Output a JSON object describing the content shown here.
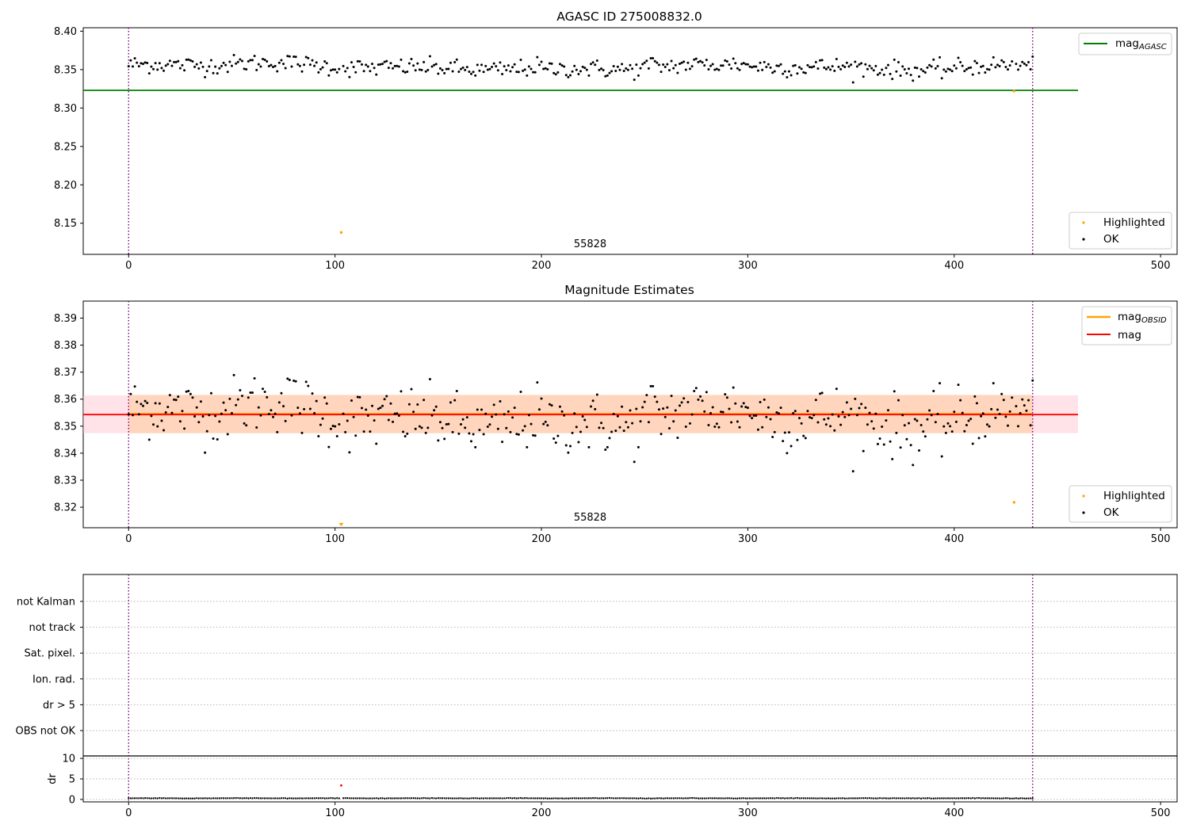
{
  "colors": {
    "ok": "#000000",
    "highlighted": "#ffa500",
    "mag_agasc": "#008000",
    "mag_obsid": "#ffa500",
    "mag": "#ff0000",
    "obs_boundary": "#800080",
    "dr_highlight": "#ff0000",
    "band_red": "#ffc0cb",
    "band_orange": "#ffd0b0"
  },
  "chart_data": [
    {
      "type": "scatter",
      "title": "AGASC ID 275008832.0",
      "xlim": [
        -22,
        508
      ],
      "ylim": [
        8.1095,
        8.4045
      ],
      "xticks": [
        0,
        100,
        200,
        300,
        400,
        500
      ],
      "yticks": [
        8.15,
        8.2,
        8.25,
        8.3,
        8.35,
        8.4
      ],
      "ytick_labels": [
        "8.15",
        "8.20",
        "8.25",
        "8.30",
        "8.35",
        "8.40"
      ],
      "obs_boundaries": [
        0,
        438
      ],
      "annotation": "55828",
      "annotation_x": 219,
      "lines": [
        {
          "name": "mag_AGASC",
          "label_main": "mag",
          "label_sub": "AGASC",
          "y": 8.323,
          "x_range": [
            -22,
            460
          ]
        }
      ],
      "legend_lines_position": "top-right",
      "legend_points_position": "lower-right",
      "series": [
        {
          "name": "Highlighted",
          "points": [
            [
              103,
              8.138
            ],
            [
              429,
              8.322
            ]
          ]
        },
        {
          "name": "OK",
          "points": []
        }
      ]
    },
    {
      "type": "scatter",
      "title": "Magnitude Estimates",
      "xlim": [
        -22,
        508
      ],
      "ylim": [
        8.3124,
        8.3963
      ],
      "xticks": [
        0,
        100,
        200,
        300,
        400,
        500
      ],
      "yticks": [
        8.32,
        8.33,
        8.34,
        8.35,
        8.36,
        8.37,
        8.38,
        8.39
      ],
      "ytick_labels": [
        "8.32",
        "8.33",
        "8.34",
        "8.35",
        "8.36",
        "8.37",
        "8.38",
        "8.39"
      ],
      "obs_boundaries": [
        0,
        438
      ],
      "annotation": "55828",
      "annotation_x": 219,
      "mag": 8.3543,
      "mag_obsid": 8.3545,
      "band_mag": [
        8.3474,
        8.3614
      ],
      "band_obsid": [
        8.3474,
        8.3616
      ],
      "lines": [
        {
          "name": "mag_OBSID",
          "label_main": "mag",
          "label_sub": "OBSID"
        },
        {
          "name": "mag",
          "label_main": "mag",
          "label_sub": ""
        }
      ],
      "legend_lines_position": "top-right",
      "legend_points_position": "lower-right",
      "series": [
        {
          "name": "Highlighted",
          "points": [
            [
              429,
              8.3218
            ]
          ],
          "below_range_marker_x": 103
        },
        {
          "name": "OK",
          "points": []
        }
      ]
    },
    {
      "type": "scatter",
      "title": "",
      "flags_axis": {
        "categories": [
          "not Kalman",
          "not track",
          "Sat. pixel.",
          "Ion. rad.",
          "dr > 5",
          "OBS not OK"
        ],
        "flagged_points": []
      },
      "dr_axis": {
        "ylabel": "dr",
        "ylim": [
          -0.6,
          10.6
        ],
        "yticks": [
          0,
          5,
          10
        ],
        "ytick_labels": [
          "0",
          "5",
          "10"
        ],
        "highlighted_points": [
          [
            103,
            3.4
          ]
        ],
        "ok_level": 0.3
      },
      "xlim": [
        -22,
        508
      ],
      "xticks": [
        0,
        100,
        200,
        300,
        400,
        500
      ],
      "obs_boundaries": [
        0,
        438
      ]
    }
  ]
}
